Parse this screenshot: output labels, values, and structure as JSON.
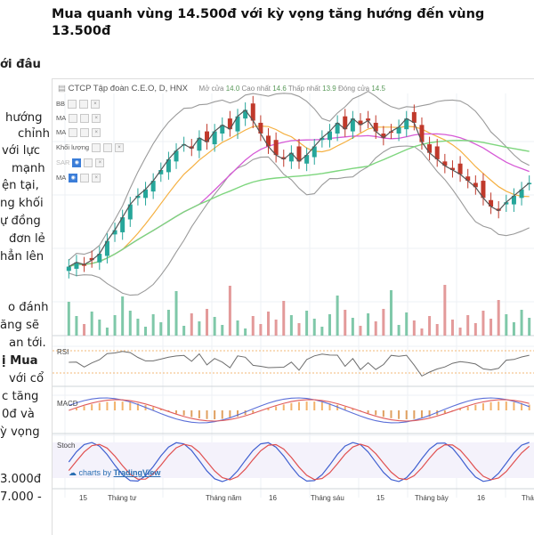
{
  "headline": "Mua quanh vùng 14.500đ với kỳ vọng tăng hướng đến vùng 13.500đ",
  "article": {
    "fragments": [
      {
        "text": "ới đâu",
        "bold": true
      },
      {
        "text": "hướng"
      },
      {
        "text": "chỉnh"
      },
      {
        "text": "với lực"
      },
      {
        "text": "mạnh"
      },
      {
        "text": "ện tại,"
      },
      {
        "text": "ng khối"
      },
      {
        "text": "ự đồng"
      },
      {
        "text": "đơn lẻ"
      },
      {
        "text": "hẳn lên"
      },
      {
        "text": "o đánh"
      },
      {
        "text": "ăng sẽ"
      },
      {
        "text": "an tới."
      },
      {
        "text": "ị Mua",
        "bold": true
      },
      {
        "text": "với cổ"
      },
      {
        "text": "c tăng"
      },
      {
        "text": "0đ và"
      },
      {
        "text": "ỳ vọng"
      },
      {
        "text": "3.000đ"
      },
      {
        "text": "7.000 -"
      }
    ]
  },
  "chart": {
    "symbol_title": "CTCP Tập đoàn C.E.O, D, HNX",
    "ohlc": {
      "open_label": "Mở cửa",
      "open": "14.0",
      "high_label": "Cao nhất",
      "high": "14.6",
      "low_label": "Thấp nhất",
      "low": "13.9",
      "close_label": "Đóng cửa",
      "close": "14.5"
    },
    "indicators": [
      {
        "label": "BB"
      },
      {
        "label": "MA"
      },
      {
        "label": "MA"
      },
      {
        "label": "Khối lượng"
      },
      {
        "label": "SAR"
      },
      {
        "label": "MA"
      }
    ],
    "panels": {
      "rsi": "RSI",
      "macd": "MACD",
      "stoch": "Stoch"
    },
    "watermark": {
      "prefix": "charts by",
      "brand": "TradingView"
    },
    "x_labels": [
      "15",
      "Tháng tư",
      "Tháng năm",
      "16",
      "Tháng sáu",
      "15",
      "Tháng bảy",
      "16",
      "Thá"
    ],
    "colors": {
      "up": "#26a69a",
      "down": "#c0392b",
      "bb": "#9a9a9a",
      "ma_orange": "#f5b041",
      "ma_magenta": "#d65ad6",
      "ma_green": "#7ed67e"
    }
  },
  "chart_data": {
    "type": "candlestick",
    "title": "CTCP Tập đoàn C.E.O, D, HNX",
    "x_ticks": [
      "15",
      "Tháng tư",
      "Tháng năm",
      "16",
      "Tháng sáu",
      "15",
      "Tháng bảy",
      "16",
      "Thá"
    ],
    "close_series": [
      10.6,
      10.8,
      10.7,
      10.9,
      11.2,
      11.8,
      12.3,
      12.9,
      13.5,
      13.9,
      14.2,
      14.6,
      15.1,
      15.6,
      16.0,
      16.3,
      16.1,
      16.6,
      16.4,
      16.9,
      17.2,
      17.0,
      17.6,
      17.9,
      17.4,
      16.8,
      16.2,
      15.8,
      15.6,
      15.9,
      15.5,
      15.8,
      16.2,
      16.6,
      16.9,
      17.3,
      17.0,
      17.5,
      17.2,
      17.4,
      16.9,
      16.6,
      16.9,
      17.1,
      17.5,
      17.3,
      16.4,
      15.9,
      15.6,
      15.3,
      15.1,
      14.9,
      14.6,
      14.3,
      13.8,
      13.4,
      13.2,
      13.6,
      13.9,
      14.2,
      14.5
    ]
  }
}
